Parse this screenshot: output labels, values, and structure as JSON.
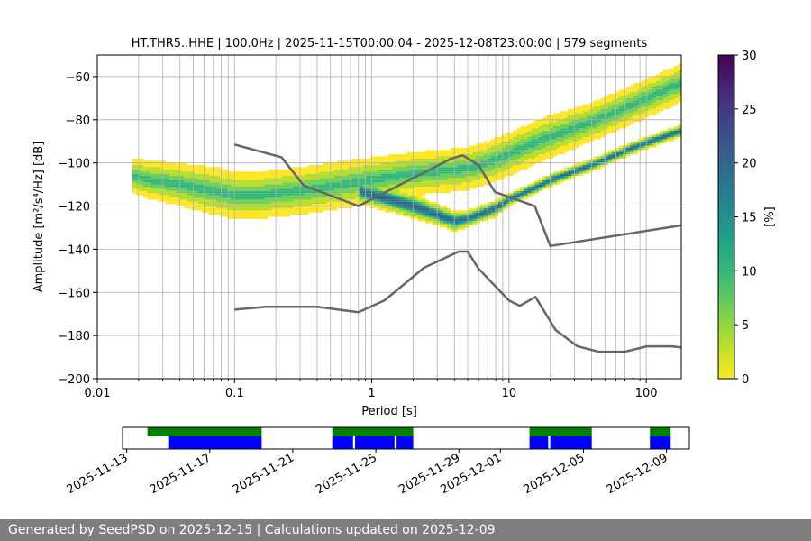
{
  "chart_data": {
    "type": "heatmap",
    "title": "HT.THR5..HHE | 100.0Hz | 2025-11-15T00:00:04 - 2025-12-08T23:00:00 | 579 segments",
    "xlabel": "Period [s]",
    "ylabel": "Amplitude [m²/s⁴/Hz] [dB]",
    "x_scale": "log",
    "xlim": [
      0.01,
      180
    ],
    "ylim": [
      -200,
      -50
    ],
    "x_ticks": [
      0.01,
      0.1,
      1,
      10,
      100
    ],
    "x_tick_labels": [
      "0.01",
      "0.1",
      "1",
      "10",
      "100"
    ],
    "y_ticks": [
      -200,
      -180,
      -160,
      -140,
      -120,
      -100,
      -80,
      -60
    ],
    "y_tick_labels": [
      "−200",
      "−180",
      "−160",
      "−140",
      "−120",
      "−100",
      "−80",
      "−60"
    ],
    "grid": true,
    "colorbar": {
      "label": "[%]",
      "range": [
        0,
        30
      ],
      "ticks": [
        0,
        5,
        10,
        15,
        20,
        25,
        30
      ],
      "tick_labels": [
        "0",
        "5",
        "10",
        "15",
        "20",
        "25",
        "30"
      ],
      "colormap": [
        "#fde725",
        "#b5de2b",
        "#6ece58",
        "#35b779",
        "#1f9e89",
        "#26828e",
        "#31688e",
        "#3e4989",
        "#482878",
        "#440154"
      ]
    },
    "noise_models": [
      {
        "type": "line",
        "color": "#666666",
        "x": [
          0.1,
          0.22,
          0.32,
          0.8,
          3.8,
          4.6,
          6.0,
          7.9,
          15.4,
          20.0,
          354.8
        ],
        "y": [
          -91.5,
          -97.4,
          -110.5,
          -120.0,
          -98.0,
          -96.5,
          -101.0,
          -113.5,
          -120.0,
          -138.5,
          -126.0
        ]
      },
      {
        "type": "line",
        "color": "#666666",
        "x": [
          0.1,
          0.17,
          0.4,
          0.8,
          1.24,
          2.4,
          4.3,
          5.0,
          6.0,
          10.0,
          12.0,
          15.6,
          21.9,
          31.6,
          45.0,
          70.0,
          101.0,
          154.0,
          328.0
        ],
        "y": [
          -168.0,
          -166.7,
          -166.7,
          -169.2,
          -163.7,
          -148.6,
          -141.1,
          -141.1,
          -149.0,
          -163.8,
          -166.2,
          -162.1,
          -177.5,
          -185.0,
          -187.5,
          -187.5,
          -185.0,
          -185.0,
          -187.5
        ]
      }
    ],
    "psd_density_bands": [
      {
        "label": "main",
        "x": [
          0.018,
          0.025,
          0.04,
          0.07,
          0.1,
          0.15,
          0.2,
          0.3,
          0.5,
          0.8,
          1.2,
          2.0,
          3.0,
          4.5,
          5.5,
          7.0,
          10.0,
          15.0,
          20.0,
          40.0,
          80.0,
          180.0
        ],
        "center": [
          -106,
          -108,
          -110,
          -113,
          -115,
          -115,
          -114,
          -113,
          -111,
          -109,
          -107,
          -105,
          -104,
          -103,
          -102,
          -100,
          -96,
          -91,
          -88,
          -81,
          -73,
          -63
        ],
        "spread": [
          8,
          9,
          10,
          11,
          11,
          11,
          11,
          11,
          11,
          11,
          10,
          10,
          10,
          10,
          10,
          10,
          10,
          10,
          10,
          9,
          9,
          9
        ]
      },
      {
        "label": "microseism",
        "x": [
          0.8,
          1.2,
          2.0,
          3.0,
          4.0,
          5.0,
          6.0,
          8.0,
          10.0,
          15.0,
          20.0,
          40.0,
          80.0,
          180.0
        ],
        "center": [
          -113,
          -116,
          -120,
          -124,
          -127,
          -126,
          -124,
          -121,
          -117,
          -112,
          -108,
          -101,
          -93,
          -85
        ],
        "spread": [
          6,
          6,
          6,
          5,
          5,
          4,
          4,
          4,
          3,
          3,
          3,
          3,
          3,
          3
        ]
      }
    ],
    "availability": {
      "x_tick_labels": [
        "2025-11-13",
        "2025-11-17",
        "2025-11-21",
        "2025-11-25",
        "2025-11-29",
        "2025-12-01",
        "2025-12-05",
        "2025-12-09"
      ],
      "x_tick_days": [
        0,
        4,
        8,
        12,
        16,
        18,
        22,
        26
      ],
      "xlim_days": [
        -0.2,
        27.1
      ],
      "data_bars": [
        [
          1.0,
          6.5
        ],
        [
          9.9,
          13.8
        ],
        [
          19.4,
          22.4
        ],
        [
          25.2,
          26.2
        ]
      ],
      "psd_bars": [
        [
          2.0,
          6.5
        ],
        [
          9.9,
          10.9
        ],
        [
          11.0,
          12.9
        ],
        [
          13.0,
          13.8
        ],
        [
          19.4,
          20.3
        ],
        [
          20.4,
          22.4
        ],
        [
          25.2,
          26.2
        ]
      ],
      "data_color": "#008000",
      "psd_color": "#0000ff"
    }
  },
  "footer": {
    "text": "Generated by SeedPSD on 2025-12-15 | Calculations updated on 2025-12-09"
  }
}
